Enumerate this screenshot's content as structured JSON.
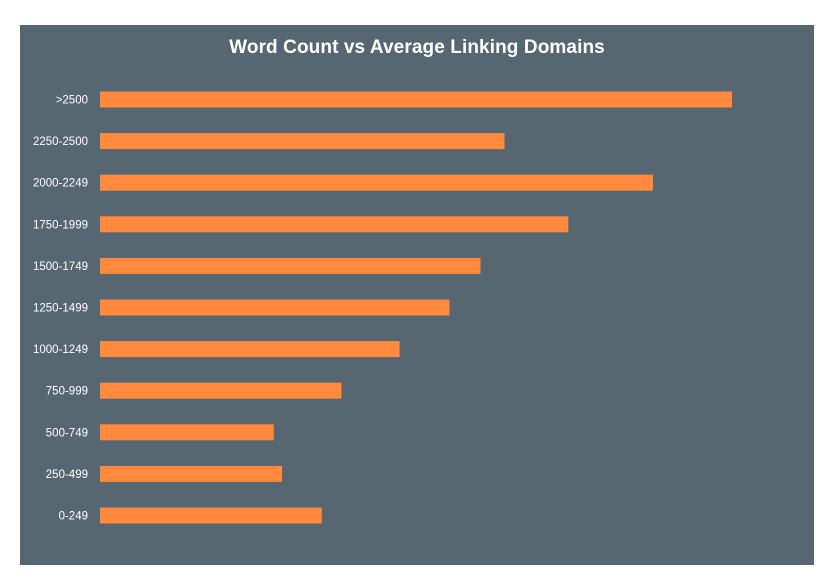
{
  "chart_data": {
    "type": "bar",
    "orientation": "horizontal",
    "title": "Word Count vs Average Linking Domains",
    "xlabel": "",
    "ylabel": "",
    "categories": [
      "0-249",
      "250-499",
      "500-749",
      "750-999",
      "1000-1249",
      "1250-1499",
      "1500-1749",
      "1750-1999",
      "2000-2249",
      "2250-2500",
      ">2500"
    ],
    "values": [
      35.1,
      28.8,
      27.5,
      38.2,
      47.4,
      55.3,
      60.2,
      74.1,
      87.5,
      64.0,
      100
    ],
    "xlim": [
      0,
      100
    ],
    "grid": false,
    "legend": "none",
    "bar_color": "#FF8A3D",
    "background_color": "#566772",
    "text_color": "#ffffff"
  }
}
